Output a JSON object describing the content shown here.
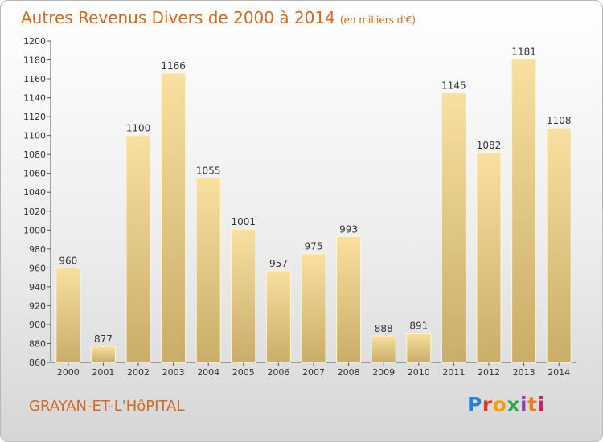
{
  "header": {
    "title": "Autres Revenus Divers de 2000 à 2014",
    "subtitle": "(en milliers d'€)"
  },
  "footer": {
    "place": "GRAYAN-ET-L'HôPITAL",
    "logo": "Proxiti"
  },
  "colors": {
    "title": "#d2691e",
    "bar_light": "#f8e0a0",
    "bar_dark": "#c9ad68"
  },
  "chart_data": {
    "type": "bar",
    "title": "Autres Revenus Divers de 2000 à 2014",
    "subtitle": "(en milliers d'€)",
    "categories": [
      "2000",
      "2001",
      "2002",
      "2003",
      "2004",
      "2005",
      "2006",
      "2007",
      "2008",
      "2009",
      "2010",
      "2011",
      "2012",
      "2013",
      "2014"
    ],
    "values": [
      960,
      877,
      1100,
      1166,
      1055,
      1001,
      957,
      975,
      993,
      888,
      891,
      1145,
      1082,
      1181,
      1108
    ],
    "ylim": [
      860,
      1200
    ],
    "ytick_step": 20,
    "grid": false,
    "data_labels": true,
    "xlabel": "",
    "ylabel": ""
  }
}
